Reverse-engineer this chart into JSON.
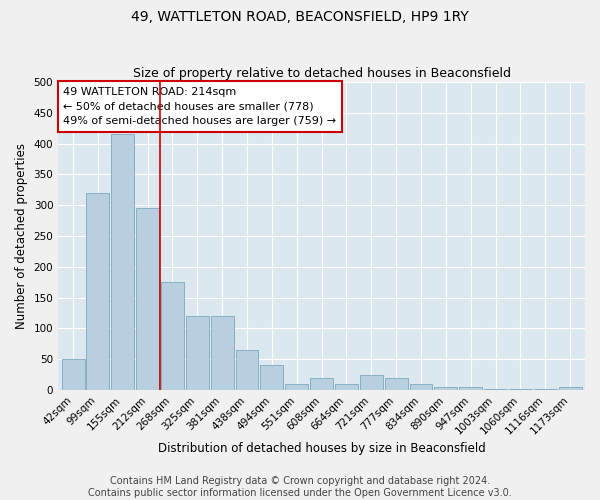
{
  "title": "49, WATTLETON ROAD, BEACONSFIELD, HP9 1RY",
  "subtitle": "Size of property relative to detached houses in Beaconsfield",
  "xlabel": "Distribution of detached houses by size in Beaconsfield",
  "ylabel": "Number of detached properties",
  "footer_line1": "Contains HM Land Registry data © Crown copyright and database right 2024.",
  "footer_line2": "Contains public sector information licensed under the Open Government Licence v3.0.",
  "annotation_title": "49 WATTLETON ROAD: 214sqm",
  "annotation_line2": "← 50% of detached houses are smaller (778)",
  "annotation_line3": "49% of semi-detached houses are larger (759) →",
  "categories": [
    "42sqm",
    "99sqm",
    "155sqm",
    "212sqm",
    "268sqm",
    "325sqm",
    "381sqm",
    "438sqm",
    "494sqm",
    "551sqm",
    "608sqm",
    "664sqm",
    "721sqm",
    "777sqm",
    "834sqm",
    "890sqm",
    "947sqm",
    "1003sqm",
    "1060sqm",
    "1116sqm",
    "1173sqm"
  ],
  "values": [
    50,
    320,
    415,
    295,
    175,
    120,
    120,
    65,
    40,
    10,
    20,
    10,
    25,
    20,
    10,
    5,
    5,
    2,
    2,
    1,
    5
  ],
  "vline_index": 3,
  "bar_color": "#b8cfe0",
  "bar_edge_color": "#7fa8c0",
  "vline_color": "#cc0000",
  "background_color": "#dce8f0",
  "grid_color": "#ffffff",
  "ylim": [
    0,
    500
  ],
  "yticks": [
    0,
    50,
    100,
    150,
    200,
    250,
    300,
    350,
    400,
    450,
    500
  ],
  "annotation_box_color": "#ffffff",
  "annotation_box_edge": "#cc0000",
  "title_fontsize": 10,
  "subtitle_fontsize": 9,
  "axis_label_fontsize": 8.5,
  "tick_fontsize": 7.5,
  "annotation_fontsize": 8,
  "footer_fontsize": 7
}
